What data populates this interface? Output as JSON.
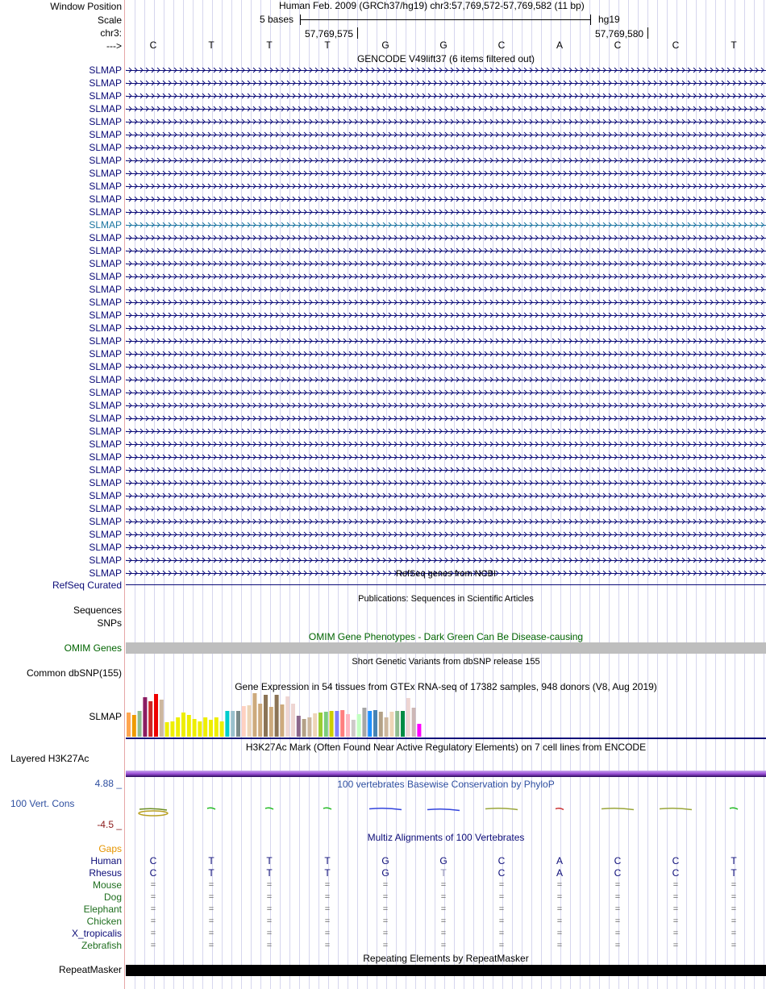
{
  "header": {
    "window_position_label": "Window Position",
    "scale_label": "Scale",
    "chrom_label": "chr3:",
    "strand_label": "--->",
    "assembly_title": "Human Feb. 2009 (GRCh37/hg19)   chr3:57,769,572-57,769,582 (11 bp)",
    "scale_text": "5 bases",
    "scale_db": "hg19",
    "coord_left": "57,769,575",
    "coord_right": "57,769,580"
  },
  "ruler_bases": [
    "C",
    "T",
    "T",
    "T",
    "G",
    "G",
    "C",
    "A",
    "C",
    "C",
    "T"
  ],
  "gencode": {
    "title": "GENCODE V49lift37 (6 items filtered out)",
    "gene_names": [
      "SLMAP",
      "SLMAP",
      "SLMAP",
      "SLMAP",
      "SLMAP",
      "SLMAP",
      "SLMAP",
      "SLMAP",
      "SLMAP",
      "SLMAP",
      "SLMAP",
      "SLMAP",
      "SLMAP",
      "SLMAP",
      "SLMAP",
      "SLMAP",
      "SLMAP",
      "SLMAP",
      "SLMAP",
      "SLMAP",
      "SLMAP",
      "SLMAP",
      "SLMAP",
      "SLMAP",
      "SLMAP",
      "SLMAP",
      "SLMAP",
      "SLMAP",
      "SLMAP",
      "SLMAP",
      "SLMAP",
      "SLMAP",
      "SLMAP",
      "SLMAP",
      "SLMAP",
      "SLMAP",
      "SLMAP",
      "SLMAP",
      "SLMAP",
      "SLMAP"
    ],
    "highlight_index": 12,
    "colors": {
      "normal": "#0c0c78",
      "highlight": "#1a74a0"
    }
  },
  "refseq": {
    "title": "RefSeq genes from NCBI",
    "label": "RefSeq Curated"
  },
  "publications": {
    "title": "Publications: Sequences in Scientific Articles",
    "label": "Sequences"
  },
  "snps_label": "SNPs",
  "omim": {
    "title": "OMIM Gene Phenotypes - Dark Green Can Be Disease-causing",
    "label": "OMIM Genes",
    "color": "#006400"
  },
  "dbsnp": {
    "title": "Short Genetic Variants from dbSNP release 155",
    "label": "Common dbSNP(155)"
  },
  "gtex": {
    "title": "Gene Expression in 54 tissues from GTEx RNA-seq of 17382 samples, 948 donors (V8, Aug 2019)",
    "label": "SLMAP",
    "bars": [
      {
        "v": 0.55,
        "c": "#ffa54f"
      },
      {
        "v": 0.5,
        "c": "#ee9a00"
      },
      {
        "v": 0.6,
        "c": "#8fbc8f"
      },
      {
        "v": 0.9,
        "c": "#8b1c62"
      },
      {
        "v": 0.82,
        "c": "#cd2626"
      },
      {
        "v": 0.98,
        "c": "#ee0000"
      },
      {
        "v": 0.85,
        "c": "#cdb79e"
      },
      {
        "v": 0.33,
        "c": "#eeee00"
      },
      {
        "v": 0.36,
        "c": "#eeee00"
      },
      {
        "v": 0.44,
        "c": "#eeee00"
      },
      {
        "v": 0.55,
        "c": "#eeee00"
      },
      {
        "v": 0.5,
        "c": "#eeee00"
      },
      {
        "v": 0.4,
        "c": "#eeee00"
      },
      {
        "v": 0.36,
        "c": "#eeee00"
      },
      {
        "v": 0.45,
        "c": "#eeee00"
      },
      {
        "v": 0.38,
        "c": "#eeee00"
      },
      {
        "v": 0.44,
        "c": "#eeee00"
      },
      {
        "v": 0.36,
        "c": "#eeee00"
      },
      {
        "v": 0.6,
        "c": "#00cdcd"
      },
      {
        "v": 0.6,
        "c": "#9ac0cd"
      },
      {
        "v": 0.6,
        "c": "#7a8b8b"
      },
      {
        "v": 0.7,
        "c": "#ffd1c1"
      },
      {
        "v": 0.72,
        "c": "#eed5b7"
      },
      {
        "v": 1.0,
        "c": "#cdaa7d"
      },
      {
        "v": 0.75,
        "c": "#cdaa7d"
      },
      {
        "v": 0.96,
        "c": "#8b7355"
      },
      {
        "v": 0.68,
        "c": "#cdaa7d"
      },
      {
        "v": 0.96,
        "c": "#8b7355"
      },
      {
        "v": 0.74,
        "c": "#cdaa7d"
      },
      {
        "v": 0.92,
        "c": "#eed5d2"
      },
      {
        "v": 0.75,
        "c": "#eed5d2"
      },
      {
        "v": 0.48,
        "c": "#8b668b"
      },
      {
        "v": 0.4,
        "c": "#b4a187"
      },
      {
        "v": 0.44,
        "c": "#cdb79e"
      },
      {
        "v": 0.54,
        "c": "#eed5b7"
      },
      {
        "v": 0.56,
        "c": "#9acd32"
      },
      {
        "v": 0.58,
        "c": "#7ccd7c"
      },
      {
        "v": 0.6,
        "c": "#cdcd00"
      },
      {
        "v": 0.6,
        "c": "#7f7fff"
      },
      {
        "v": 0.62,
        "c": "#ff7f7f"
      },
      {
        "v": 0.52,
        "c": "#ffb6c1"
      },
      {
        "v": 0.38,
        "c": "#cdc9c9"
      },
      {
        "v": 0.52,
        "c": "#c1ffc1"
      },
      {
        "v": 0.66,
        "c": "#a6a6a6"
      },
      {
        "v": 0.6,
        "c": "#1e90ff"
      },
      {
        "v": 0.62,
        "c": "#4682b4"
      },
      {
        "v": 0.58,
        "c": "#b4a187"
      },
      {
        "v": 0.44,
        "c": "#cdb79e"
      },
      {
        "v": 0.58,
        "c": "#eed5b7"
      },
      {
        "v": 0.6,
        "c": "#8fbc8f"
      },
      {
        "v": 0.6,
        "c": "#008b45"
      },
      {
        "v": 0.88,
        "c": "#eed5d2"
      },
      {
        "v": 0.66,
        "c": "#cdb7b5"
      },
      {
        "v": 0.3,
        "c": "#ff00ff"
      }
    ]
  },
  "h3k27ac": {
    "title": "H3K27Ac Mark (Often Found Near Active Regulatory Elements) on 7 cell lines from ENCODE",
    "label": "Layered H3K27Ac"
  },
  "phylop": {
    "title": "100 vertebrates Basewise Conservation by PhyloP",
    "label": "100 Vert. Cons",
    "max_label": "4.88 _",
    "min_label": "-4.5 _",
    "colors": {
      "title": "#2e4fa0",
      "max": "#2e4fa0",
      "min": "#8b1a1a"
    },
    "segments": [
      {
        "c": "#6b8e23",
        "v": 0.2
      },
      {
        "c": "#22bb22",
        "v": 0.4
      },
      {
        "c": "#22bb22",
        "v": 0.4
      },
      {
        "c": "#22bb22",
        "v": 0.4
      },
      {
        "c": "#3344dd",
        "v": 0.3
      },
      {
        "c": "#3344dd",
        "v": 0.1
      },
      {
        "c": "#9aa63a",
        "v": 0.3
      },
      {
        "c": "#cc3333",
        "v": 0.3
      },
      {
        "c": "#9aa63a",
        "v": 0.3
      },
      {
        "c": "#9aa63a",
        "v": 0.3
      },
      {
        "c": "#22bb22",
        "v": 0.4
      }
    ]
  },
  "multiz": {
    "title": "Multiz Alignments of 100 Vertebrates",
    "gaps_label": "Gaps",
    "gaps_color": "#e69500",
    "species": [
      {
        "name": "Human",
        "color": "#0c0c78",
        "seq": [
          "C",
          "T",
          "T",
          "T",
          "G",
          "G",
          "C",
          "A",
          "C",
          "C",
          "T"
        ]
      },
      {
        "name": "Rhesus",
        "color": "#0c0c78",
        "seq": [
          "C",
          "T",
          "T",
          "T",
          "G",
          "T",
          "C",
          "A",
          "C",
          "C",
          "T"
        ]
      },
      {
        "name": "Mouse",
        "color": "#1e6e1e",
        "seq": [
          "=",
          "=",
          "=",
          "=",
          "=",
          "=",
          "=",
          "=",
          "=",
          "=",
          "="
        ]
      },
      {
        "name": "Dog",
        "color": "#1e6e1e",
        "seq": [
          "=",
          "=",
          "=",
          "=",
          "=",
          "=",
          "=",
          "=",
          "=",
          "=",
          "="
        ]
      },
      {
        "name": "Elephant",
        "color": "#1e6e1e",
        "seq": [
          "=",
          "=",
          "=",
          "=",
          "=",
          "=",
          "=",
          "=",
          "=",
          "=",
          "="
        ]
      },
      {
        "name": "Chicken",
        "color": "#1e6e1e",
        "seq": [
          "=",
          "=",
          "=",
          "=",
          "=",
          "=",
          "=",
          "=",
          "=",
          "=",
          "="
        ]
      },
      {
        "name": "X_tropicalis",
        "color": "#0c0c78",
        "seq": [
          "=",
          "=",
          "=",
          "=",
          "=",
          "=",
          "=",
          "=",
          "=",
          "=",
          "="
        ]
      },
      {
        "name": "Zebrafish",
        "color": "#1e6e1e",
        "seq": [
          "=",
          "=",
          "=",
          "=",
          "=",
          "=",
          "=",
          "=",
          "=",
          "=",
          "="
        ]
      }
    ]
  },
  "repeatmasker": {
    "title": "Repeating Elements by RepeatMasker",
    "label": "RepeatMasker"
  }
}
